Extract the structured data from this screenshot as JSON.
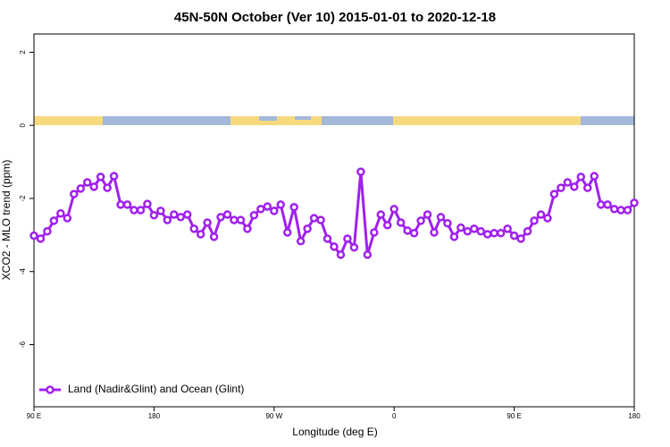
{
  "chart_data": {
    "type": "line",
    "title": "45N-50N October (Ver 10)   2015-01-01 to 2020-12-18",
    "x_label": "Longitude (deg E)",
    "y_label": "XCO2 - MLO trend (ppm)",
    "xlim": [
      90,
      540
    ],
    "ylim": [
      -7.7,
      2.5
    ],
    "xticks": [
      {
        "value": 90,
        "label": "90 E"
      },
      180,
      {
        "value": 270,
        "label": "90 W"
      },
      {
        "value": 360,
        "label": "0"
      },
      {
        "value": 450,
        "label": "90 E"
      },
      {
        "value": 540,
        "label": "180"
      }
    ],
    "yticks": [
      2,
      0,
      -2,
      -4,
      -6
    ],
    "legend_position": "bottom-left",
    "x": [
      90,
      95,
      100,
      105,
      110,
      115,
      120,
      125,
      130,
      135,
      140,
      145,
      150,
      155,
      160,
      165,
      170,
      175,
      180,
      185,
      190,
      195,
      200,
      205,
      210,
      215,
      220,
      225,
      230,
      235,
      240,
      245,
      250,
      255,
      260,
      265,
      270,
      275,
      280,
      285,
      290,
      295,
      300,
      305,
      310,
      315,
      320,
      325,
      330,
      335,
      340,
      345,
      350,
      355,
      360,
      365,
      370,
      375,
      380,
      385,
      390,
      395,
      400,
      405,
      410,
      415,
      420,
      425,
      430,
      435,
      440,
      445,
      450,
      455,
      460,
      465,
      470,
      475,
      480,
      485,
      490,
      495,
      500,
      505,
      510,
      515,
      520,
      525,
      530,
      535,
      540
    ],
    "series": [
      {
        "name": "Land (Nadir&Glint) and Ocean (Glint)",
        "color": "#a020f0",
        "values": [
          -3.02,
          -3.1,
          -2.9,
          -2.61,
          -2.41,
          -2.54,
          -1.88,
          -1.73,
          -1.56,
          -1.68,
          -1.41,
          -1.71,
          -1.39,
          -2.17,
          -2.17,
          -2.32,
          -2.32,
          -2.15,
          -2.46,
          -2.34,
          -2.59,
          -2.44,
          -2.51,
          -2.44,
          -2.83,
          -2.98,
          -2.66,
          -3.05,
          -2.51,
          -2.44,
          -2.59,
          -2.59,
          -2.83,
          -2.46,
          -2.29,
          -2.22,
          -2.34,
          -2.17,
          -2.93,
          -2.24,
          -3.17,
          -2.83,
          -2.54,
          -2.59,
          -3.1,
          -3.32,
          -3.54,
          -3.1,
          -3.34,
          -1.27,
          -3.54,
          -2.93,
          -2.44,
          -2.73,
          -2.29,
          -2.66,
          -2.88,
          -2.95,
          -2.61,
          -2.44,
          -2.93,
          -2.51,
          -2.68,
          -3.05,
          -2.8,
          -2.9,
          -2.83,
          -2.9,
          -2.98,
          -2.95,
          -2.95,
          -2.83,
          -3.02,
          -3.1,
          -2.9,
          -2.61,
          -2.44,
          -2.54,
          -1.88,
          -1.71,
          -1.56,
          -1.68,
          -1.41,
          -1.71,
          -1.39,
          -2.17,
          -2.17,
          -2.29,
          -2.32,
          -2.32,
          -2.12
        ]
      }
    ]
  }
}
